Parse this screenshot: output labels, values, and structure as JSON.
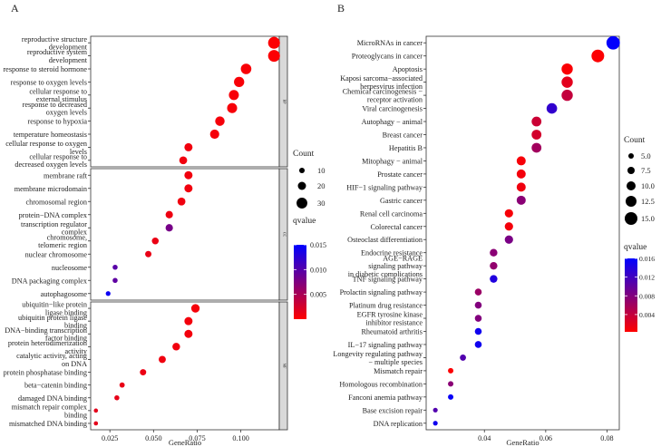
{
  "chart_data": [
    {
      "type": "scatter",
      "panel_label": "A",
      "xlabel": "GeneRatio",
      "xlim": [
        0.014,
        0.122
      ],
      "xticks": [
        0.025,
        0.05,
        0.075,
        0.1
      ],
      "xtick_labels": [
        "0.025",
        "0.050",
        "0.075",
        "0.100"
      ],
      "size_legend": {
        "title": "Count",
        "values": [
          10,
          20,
          30
        ]
      },
      "color_legend": {
        "title": "qvalue",
        "range": [
          0.0,
          0.015
        ],
        "ticks": [
          0.005,
          0.01,
          0.015
        ],
        "tick_labels": [
          "0.005",
          "0.010",
          "0.015"
        ],
        "low_color": "#ff0000",
        "high_color": "#0000ff"
      },
      "facets": [
        {
          "strip": "BP",
          "terms": [
            {
              "label": [
                "reproductive structure",
                "development"
              ],
              "x": 0.119,
              "count": 34,
              "q": 0.0002
            },
            {
              "label": [
                "reproductive system",
                "development"
              ],
              "x": 0.119,
              "count": 34,
              "q": 0.0002
            },
            {
              "label": [
                "response to steroid hormone"
              ],
              "x": 0.103,
              "count": 29,
              "q": 0.0004
            },
            {
              "label": [
                "response to oxygen levels"
              ],
              "x": 0.099,
              "count": 28,
              "q": 0.0004
            },
            {
              "label": [
                "cellular response to",
                "external stimulus"
              ],
              "x": 0.096,
              "count": 27,
              "q": 0.0005
            },
            {
              "label": [
                "response to decreased",
                "oxygen levels"
              ],
              "x": 0.095,
              "count": 27,
              "q": 0.0005
            },
            {
              "label": [
                "response to hypoxia"
              ],
              "x": 0.088,
              "count": 25,
              "q": 0.0006
            },
            {
              "label": [
                "temperature homeostasis"
              ],
              "x": 0.085,
              "count": 24,
              "q": 0.0006
            },
            {
              "label": [
                "cellular response to oxygen",
                "levels"
              ],
              "x": 0.07,
              "count": 20,
              "q": 0.0008
            },
            {
              "label": [
                "cellular response to",
                "decreased oxygen levels"
              ],
              "x": 0.067,
              "count": 19,
              "q": 0.0008
            }
          ]
        },
        {
          "strip": "CC",
          "terms": [
            {
              "label": [
                "membrane raft"
              ],
              "x": 0.07,
              "count": 20,
              "q": 0.0008
            },
            {
              "label": [
                "membrane microdomain"
              ],
              "x": 0.07,
              "count": 20,
              "q": 0.0008
            },
            {
              "label": [
                "chromosomal region"
              ],
              "x": 0.066,
              "count": 19,
              "q": 0.0009
            },
            {
              "label": [
                "protein−DNA complex"
              ],
              "x": 0.059,
              "count": 17,
              "q": 0.001
            },
            {
              "label": [
                "transcription regulator",
                "complex"
              ],
              "x": 0.059,
              "count": 17,
              "q": 0.008
            },
            {
              "label": [
                "chromosome,",
                "telomeric region"
              ],
              "x": 0.051,
              "count": 15,
              "q": 0.0012
            },
            {
              "label": [
                "nuclear chromosome"
              ],
              "x": 0.047,
              "count": 13,
              "q": 0.0013
            },
            {
              "label": [
                "nucleosome"
              ],
              "x": 0.028,
              "count": 8,
              "q": 0.0098
            },
            {
              "label": [
                "DNA packaging complex"
              ],
              "x": 0.028,
              "count": 8,
              "q": 0.0095
            },
            {
              "label": [
                "autophagosome"
              ],
              "x": 0.024,
              "count": 7,
              "q": 0.0143
            }
          ]
        },
        {
          "strip": "MF",
          "terms": [
            {
              "label": [
                "ubiquitin−like protein",
                "ligase binding"
              ],
              "x": 0.074,
              "count": 21,
              "q": 0.0006
            },
            {
              "label": [
                "ubiquitin protein ligase",
                "binding"
              ],
              "x": 0.07,
              "count": 20,
              "q": 0.0007
            },
            {
              "label": [
                "DNA−binding transcription",
                "factor binding"
              ],
              "x": 0.07,
              "count": 20,
              "q": 0.0007
            },
            {
              "label": [
                "protein heterodimerization",
                "activity"
              ],
              "x": 0.063,
              "count": 18,
              "q": 0.0008
            },
            {
              "label": [
                "catalytic activity, acting",
                "on DNA"
              ],
              "x": 0.055,
              "count": 16,
              "q": 0.0009
            },
            {
              "label": [
                "protein phosphatase binding"
              ],
              "x": 0.044,
              "count": 13,
              "q": 0.0011
            },
            {
              "label": [
                "beta−catenin binding"
              ],
              "x": 0.032,
              "count": 9,
              "q": 0.0013
            },
            {
              "label": [
                "damaged DNA binding"
              ],
              "x": 0.029,
              "count": 8,
              "q": 0.0014
            },
            {
              "label": [
                "mismatch repair complex",
                "binding"
              ],
              "x": 0.017,
              "count": 5,
              "q": 0.0016
            },
            {
              "label": [
                "mismatched DNA binding"
              ],
              "x": 0.017,
              "count": 5,
              "q": 0.0016
            }
          ]
        }
      ]
    },
    {
      "type": "scatter",
      "panel_label": "B",
      "xlabel": "GeneRatio",
      "xlim": [
        0.021,
        0.084
      ],
      "xticks": [
        0.04,
        0.06,
        0.08
      ],
      "xtick_labels": [
        "0.04",
        "0.06",
        "0.08"
      ],
      "size_legend": {
        "title": "Count",
        "values": [
          5.0,
          7.5,
          10.0,
          12.5,
          15.0
        ],
        "labels": [
          "5.0",
          "7.5",
          "10.0",
          "12.5",
          "15.0"
        ]
      },
      "color_legend": {
        "title": "qvalue",
        "range": [
          0.0003,
          0.016
        ],
        "ticks": [
          0.004,
          0.008,
          0.012,
          0.016
        ],
        "tick_labels": [
          "0.004",
          "0.008",
          "0.012",
          "0.016"
        ],
        "low_color": "#ff0000",
        "high_color": "#0000ff"
      },
      "terms": [
        {
          "label": [
            "MicroRNAs in cancer"
          ],
          "x": 0.082,
          "count": 16,
          "q": 0.0158
        },
        {
          "label": [
            "Proteoglycans in cancer"
          ],
          "x": 0.077,
          "count": 15,
          "q": 0.0005
        },
        {
          "label": [
            "Apoptosis"
          ],
          "x": 0.067,
          "count": 13,
          "q": 0.0006
        },
        {
          "label": [
            "Kaposi sarcoma−associated",
            "herpesvirus infection"
          ],
          "x": 0.067,
          "count": 13,
          "q": 0.002
        },
        {
          "label": [
            "Chemical carcinogenesis −",
            "receptor activation"
          ],
          "x": 0.067,
          "count": 13,
          "q": 0.004
        },
        {
          "label": [
            "Viral carcinogenesis"
          ],
          "x": 0.062,
          "count": 12,
          "q": 0.013
        },
        {
          "label": [
            "Autophagy − animal"
          ],
          "x": 0.057,
          "count": 11,
          "q": 0.0035
        },
        {
          "label": [
            "Breast cancer"
          ],
          "x": 0.057,
          "count": 11,
          "q": 0.003
        },
        {
          "label": [
            "Hepatitis B"
          ],
          "x": 0.057,
          "count": 11,
          "q": 0.006
        },
        {
          "label": [
            "Mitophagy − animal"
          ],
          "x": 0.052,
          "count": 10,
          "q": 0.0008
        },
        {
          "label": [
            "Prostate cancer"
          ],
          "x": 0.052,
          "count": 10,
          "q": 0.001
        },
        {
          "label": [
            "HIF−1 signaling pathway"
          ],
          "x": 0.052,
          "count": 10,
          "q": 0.0012
        },
        {
          "label": [
            "Gastric cancer"
          ],
          "x": 0.052,
          "count": 10,
          "q": 0.0075
        },
        {
          "label": [
            "Renal cell carcinoma"
          ],
          "x": 0.048,
          "count": 9,
          "q": 0.0008
        },
        {
          "label": [
            "Colorectal cancer"
          ],
          "x": 0.048,
          "count": 9,
          "q": 0.001
        },
        {
          "label": [
            "Osteoclast differentiation"
          ],
          "x": 0.048,
          "count": 9,
          "q": 0.0085
        },
        {
          "label": [
            "Endocrine resistance"
          ],
          "x": 0.043,
          "count": 8,
          "q": 0.0075
        },
        {
          "label": [
            "AGE−RAGE",
            "signaling pathway",
            "in diabetic complications"
          ],
          "x": 0.043,
          "count": 8,
          "q": 0.007
        },
        {
          "label": [
            "TNF signaling pathway"
          ],
          "x": 0.043,
          "count": 8,
          "q": 0.014
        },
        {
          "label": [
            "Prolactin signaling pathway"
          ],
          "x": 0.038,
          "count": 7,
          "q": 0.0065
        },
        {
          "label": [
            "Platinum drug resistance"
          ],
          "x": 0.038,
          "count": 7,
          "q": 0.008
        },
        {
          "label": [
            "EGFR tyrosine kinase",
            "inhibitor resistance"
          ],
          "x": 0.038,
          "count": 7,
          "q": 0.008
        },
        {
          "label": [
            "Rheumatoid arthritis"
          ],
          "x": 0.038,
          "count": 7,
          "q": 0.015
        },
        {
          "label": [
            "IL−17 signaling pathway"
          ],
          "x": 0.038,
          "count": 7,
          "q": 0.015
        },
        {
          "label": [
            "Longevity regulating pathway",
            "− multiple species"
          ],
          "x": 0.033,
          "count": 6,
          "q": 0.011
        },
        {
          "label": [
            "Mismatch repair"
          ],
          "x": 0.029,
          "count": 5,
          "q": 0.0005
        },
        {
          "label": [
            "Homologous recombination"
          ],
          "x": 0.029,
          "count": 5,
          "q": 0.0075
        },
        {
          "label": [
            "Fanconi anemia pathway"
          ],
          "x": 0.029,
          "count": 5,
          "q": 0.0155
        },
        {
          "label": [
            "Base excision repair"
          ],
          "x": 0.024,
          "count": 4,
          "q": 0.011
        },
        {
          "label": [
            "DNA replication"
          ],
          "x": 0.024,
          "count": 4,
          "q": 0.015
        }
      ]
    }
  ]
}
